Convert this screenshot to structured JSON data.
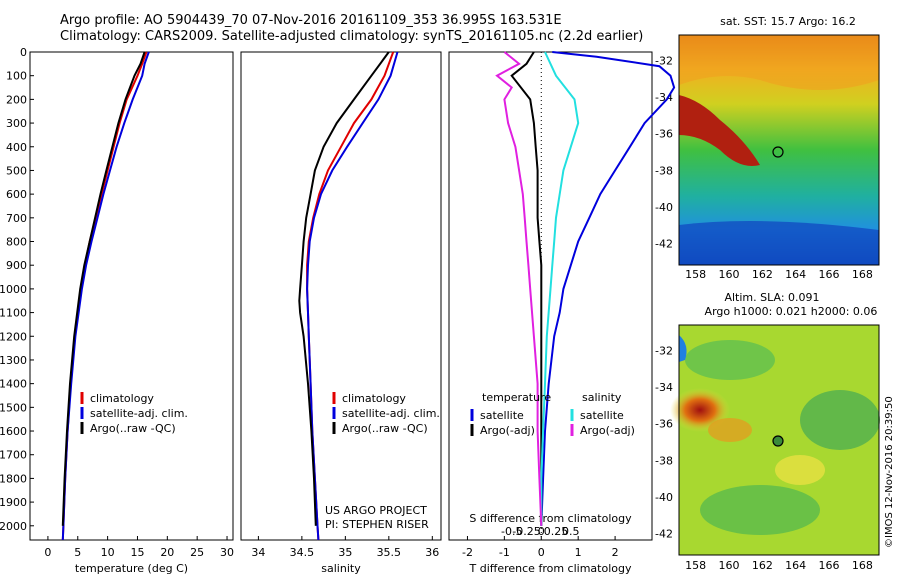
{
  "header": {
    "title_line1": "Argo profile: AO 5904439_70 07-Nov-2016 20161109_353 36.995S 163.531E",
    "title_line2": "Climatology: CARS2009. Satellite-adjusted climatology: synTS_20161105.nc (2.2d earlier)"
  },
  "sst_map": {
    "title": "sat. SST: 15.7 Argo: 16.2",
    "lat_ticks": [
      "-32",
      "-34",
      "-36",
      "-38",
      "-40",
      "-42"
    ],
    "lon_ticks": [
      "158",
      "160",
      "162",
      "164",
      "166",
      "168"
    ]
  },
  "sla_map": {
    "title_line1": "Altim. SLA: 0.091",
    "title_line2": "Argo h1000: 0.021 h2000: 0.06",
    "lat_ticks": [
      "-32",
      "-34",
      "-36",
      "-38",
      "-40",
      "-42"
    ],
    "lon_ticks": [
      "158",
      "160",
      "162",
      "164",
      "166",
      "168"
    ]
  },
  "credits": {
    "project": "US ARGO PROJECT",
    "pi": "PI: STEPHEN RISER",
    "imos": "©IMOS 12-Nov-2016 20:39:50"
  },
  "colors": {
    "climatology": "#e00000",
    "satellite": "#0000dd",
    "argo": "#000000",
    "salinity_sat": "#22e0e0",
    "salinity_argo": "#e020e0"
  },
  "chart_data": [
    {
      "type": "line",
      "xlabel": "temperature (deg C)",
      "ylabel": "",
      "xlim": [
        -3,
        31
      ],
      "ylim": [
        2060,
        0
      ],
      "xticks": [
        "0",
        "5",
        "10",
        "15",
        "20",
        "25",
        "30"
      ],
      "yticks": [
        "0",
        "100",
        "200",
        "300",
        "400",
        "500",
        "600",
        "700",
        "800",
        "900",
        "1000",
        "1100",
        "1200",
        "1300",
        "1400",
        "1500",
        "1600",
        "1700",
        "1800",
        "1900",
        "2000"
      ],
      "legend": [
        "climatology",
        "satellite-adj. clim.",
        "Argo(..raw -QC)"
      ],
      "series": [
        {
          "name": "climatology",
          "color": "#e00000",
          "depth": [
            0,
            50,
            100,
            200,
            300,
            400,
            500,
            600,
            700,
            800,
            900,
            1000,
            1200,
            1400,
            1600,
            1800,
            2000,
            2060
          ],
          "values": [
            16.5,
            15.8,
            15.0,
            13.2,
            12.0,
            11.0,
            10.0,
            9.0,
            8.0,
            7.0,
            6.2,
            5.5,
            4.5,
            3.8,
            3.3,
            2.9,
            2.6,
            2.5
          ]
        },
        {
          "name": "satellite-adj. clim.",
          "color": "#0000dd",
          "depth": [
            0,
            50,
            100,
            200,
            300,
            400,
            500,
            600,
            700,
            800,
            900,
            1000,
            1200,
            1400,
            1600,
            1800,
            2000,
            2060
          ],
          "values": [
            16.9,
            16.2,
            15.8,
            14.2,
            12.8,
            11.5,
            10.4,
            9.3,
            8.3,
            7.3,
            6.4,
            5.7,
            4.6,
            3.9,
            3.3,
            2.9,
            2.6,
            2.5
          ]
        },
        {
          "name": "Argo(..raw -QC)",
          "color": "#000000",
          "depth": [
            0,
            50,
            100,
            200,
            300,
            400,
            500,
            600,
            700,
            800,
            900,
            1000,
            1200,
            1400,
            1600,
            1800,
            2000
          ],
          "values": [
            16.2,
            15.5,
            14.5,
            13.0,
            11.8,
            10.8,
            9.8,
            8.8,
            7.9,
            7.0,
            6.1,
            5.4,
            4.4,
            3.7,
            3.2,
            2.8,
            2.5
          ]
        }
      ]
    },
    {
      "type": "line",
      "xlabel": "salinity",
      "ylabel": "",
      "xlim": [
        33.8,
        36.1
      ],
      "ylim": [
        2060,
        0
      ],
      "xticks": [
        "34",
        "34.5",
        "35",
        "35.5",
        "36"
      ],
      "legend": [
        "climatology",
        "satellite-adj. clim.",
        "Argo(..raw -QC)"
      ],
      "series": [
        {
          "name": "climatology",
          "color": "#e00000",
          "depth": [
            0,
            100,
            200,
            300,
            400,
            500,
            600,
            700,
            800,
            900,
            1000,
            1100,
            1200,
            1400,
            1600,
            1800,
            2000,
            2060
          ],
          "values": [
            35.55,
            35.45,
            35.3,
            35.1,
            34.95,
            34.8,
            34.7,
            34.63,
            34.58,
            34.56,
            34.56,
            34.57,
            34.58,
            34.6,
            34.62,
            34.65,
            34.68,
            34.69
          ]
        },
        {
          "name": "satellite-adj. clim.",
          "color": "#0000dd",
          "depth": [
            0,
            100,
            200,
            300,
            400,
            500,
            600,
            700,
            800,
            900,
            1000,
            1100,
            1200,
            1400,
            1600,
            1800,
            2000,
            2060
          ],
          "values": [
            35.6,
            35.52,
            35.38,
            35.2,
            35.02,
            34.85,
            34.72,
            34.64,
            34.59,
            34.57,
            34.56,
            34.57,
            34.58,
            34.6,
            34.62,
            34.65,
            34.68,
            34.69
          ]
        },
        {
          "name": "Argo(..raw -QC)",
          "color": "#000000",
          "depth": [
            0,
            100,
            200,
            300,
            400,
            500,
            600,
            700,
            800,
            900,
            1000,
            1050,
            1100,
            1200,
            1400,
            1600,
            1800,
            2000
          ],
          "values": [
            35.5,
            35.3,
            35.1,
            34.9,
            34.75,
            34.65,
            34.6,
            34.55,
            34.52,
            34.5,
            34.48,
            34.47,
            34.48,
            34.52,
            34.57,
            34.61,
            34.64,
            34.66
          ]
        }
      ]
    },
    {
      "type": "line",
      "xlabel": "T difference from climatology",
      "xlabel_top": "S difference from climatology",
      "ylabel": "",
      "xlim": [
        -2.5,
        3
      ],
      "ylim": [
        2060,
        0
      ],
      "xticks": [
        "-2",
        "-1",
        "0",
        "1",
        "2"
      ],
      "xticks_salinity": [
        "-0.5",
        "-0.25",
        "0",
        "0.25",
        "0.5"
      ],
      "legend_temperature_heading": "temperature",
      "legend_salinity_heading": "salinity",
      "legend": [
        "satellite",
        "Argo(-adj)",
        "satellite",
        "Argo(-adj)"
      ],
      "series": [
        {
          "name": "satellite",
          "color": "#0000dd",
          "depth": [
            0,
            20,
            60,
            100,
            150,
            200,
            300,
            400,
            500,
            600,
            700,
            800,
            900,
            1000,
            1100,
            1200,
            1400,
            1600,
            1800,
            2000
          ],
          "values": [
            0.3,
            1.5,
            3.2,
            3.5,
            3.6,
            3.4,
            2.8,
            2.4,
            2.0,
            1.6,
            1.3,
            1.0,
            0.8,
            0.6,
            0.5,
            0.35,
            0.2,
            0.1,
            0.05,
            0.0
          ]
        },
        {
          "name": "Argo(-adj)",
          "color": "#000000",
          "depth": [
            0,
            50,
            100,
            200,
            300,
            400,
            500,
            600,
            700,
            800,
            900,
            1000,
            1200,
            1400,
            1600,
            1800,
            2000
          ],
          "values": [
            -0.2,
            -0.4,
            -0.8,
            -0.3,
            -0.2,
            -0.15,
            -0.1,
            -0.1,
            -0.1,
            -0.05,
            0.0,
            0.0,
            0.0,
            0.0,
            0.0,
            0.0,
            0.0
          ]
        },
        {
          "name": "satellite",
          "color": "#22e0e0",
          "depth": [
            0,
            100,
            200,
            300,
            400,
            500,
            600,
            700,
            800,
            900,
            1000,
            1200,
            1400,
            1600,
            1800,
            2000
          ],
          "values": [
            0.1,
            0.4,
            0.9,
            1.0,
            0.8,
            0.6,
            0.5,
            0.4,
            0.35,
            0.3,
            0.25,
            0.15,
            0.1,
            0.05,
            0.0,
            0.0
          ]
        },
        {
          "name": "Argo(-adj)",
          "color": "#e020e0",
          "depth": [
            0,
            50,
            100,
            150,
            200,
            300,
            400,
            500,
            600,
            700,
            800,
            900,
            1000,
            1200,
            1400,
            1600,
            1800,
            2000
          ],
          "values": [
            -1.0,
            -0.6,
            -1.2,
            -0.8,
            -1.0,
            -0.9,
            -0.7,
            -0.6,
            -0.5,
            -0.45,
            -0.4,
            -0.35,
            -0.3,
            -0.2,
            -0.1,
            -0.1,
            -0.05,
            0.0
          ]
        }
      ]
    }
  ]
}
